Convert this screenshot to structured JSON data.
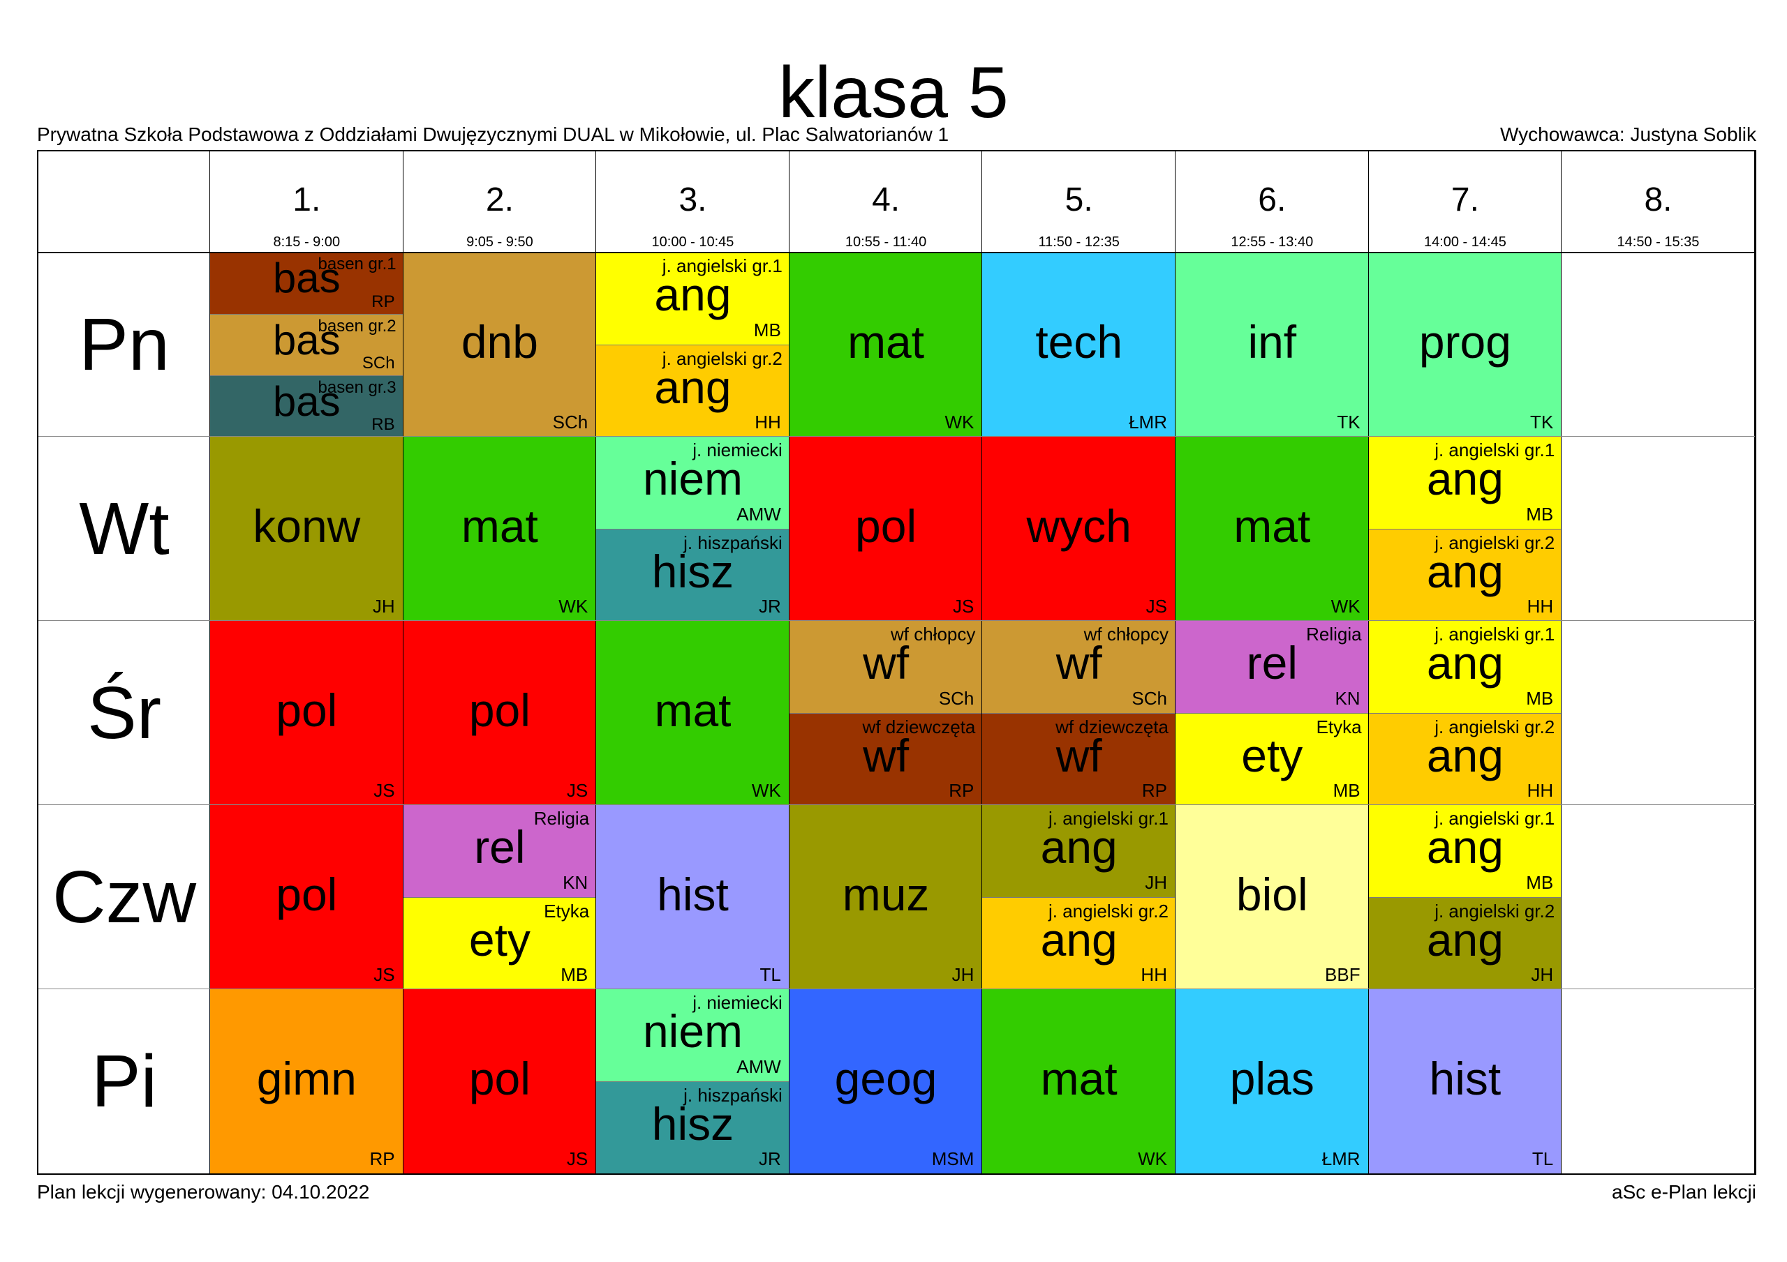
{
  "title": "klasa 5",
  "school": "Prywatna Szkoła Podstawowa z Oddziałami Dwujęzycznymi DUAL w Mikołowie, ul. Plac Salwatorianów 1",
  "teacher": "Wychowawca: Justyna Soblik",
  "footer_left": "Plan lekcji wygenerowany: 04.10.2022",
  "footer_right": "aSc e-Plan lekcji",
  "periods": [
    {
      "num": "1.",
      "time": "8:15 - 9:00"
    },
    {
      "num": "2.",
      "time": "9:05 - 9:50"
    },
    {
      "num": "3.",
      "time": "10:00 - 10:45"
    },
    {
      "num": "4.",
      "time": "10:55 - 11:40"
    },
    {
      "num": "5.",
      "time": "11:50 - 12:35"
    },
    {
      "num": "6.",
      "time": "12:55 - 13:40"
    },
    {
      "num": "7.",
      "time": "14:00 - 14:45"
    },
    {
      "num": "8.",
      "time": "14:50 - 15:35"
    }
  ],
  "days": [
    {
      "label": "Pn",
      "slots": [
        [
          {
            "s": "bas",
            "f": "basen gr.1",
            "t": "RP",
            "c": "#993300"
          },
          {
            "s": "bas",
            "f": "basen gr.2",
            "t": "SCh",
            "c": "#CC9933"
          },
          {
            "s": "bas",
            "f": "basen gr.3",
            "t": "RB",
            "c": "#336666"
          }
        ],
        [
          {
            "s": "dnb",
            "f": "",
            "t": "SCh",
            "c": "#CC9933"
          }
        ],
        [
          {
            "s": "ang",
            "f": "j. angielski gr.1",
            "t": "MB",
            "c": "#FFFF00"
          },
          {
            "s": "ang",
            "f": "j. angielski gr.2",
            "t": "HH",
            "c": "#FFCC00"
          }
        ],
        [
          {
            "s": "mat",
            "f": "",
            "t": "WK",
            "c": "#33CC00"
          }
        ],
        [
          {
            "s": "tech",
            "f": "",
            "t": "ŁMR",
            "c": "#33CCFF"
          }
        ],
        [
          {
            "s": "inf",
            "f": "",
            "t": "TK",
            "c": "#66FF99"
          }
        ],
        [
          {
            "s": "prog",
            "f": "",
            "t": "TK",
            "c": "#66FF99"
          }
        ],
        []
      ]
    },
    {
      "label": "Wt",
      "slots": [
        [
          {
            "s": "konw",
            "f": "",
            "t": "JH",
            "c": "#999900"
          }
        ],
        [
          {
            "s": "mat",
            "f": "",
            "t": "WK",
            "c": "#33CC00"
          }
        ],
        [
          {
            "s": "niem",
            "f": "j. niemiecki",
            "t": "AMW",
            "c": "#66FF99"
          },
          {
            "s": "hisz",
            "f": "j. hiszpański",
            "t": "JR",
            "c": "#339999"
          }
        ],
        [
          {
            "s": "pol",
            "f": "",
            "t": "JS",
            "c": "#FF0000"
          }
        ],
        [
          {
            "s": "wych",
            "f": "",
            "t": "JS",
            "c": "#FF0000"
          }
        ],
        [
          {
            "s": "mat",
            "f": "",
            "t": "WK",
            "c": "#33CC00"
          }
        ],
        [
          {
            "s": "ang",
            "f": "j. angielski gr.1",
            "t": "MB",
            "c": "#FFFF00"
          },
          {
            "s": "ang",
            "f": "j. angielski gr.2",
            "t": "HH",
            "c": "#FFCC00"
          }
        ],
        []
      ]
    },
    {
      "label": "Śr",
      "slots": [
        [
          {
            "s": "pol",
            "f": "",
            "t": "JS",
            "c": "#FF0000"
          }
        ],
        [
          {
            "s": "pol",
            "f": "",
            "t": "JS",
            "c": "#FF0000"
          }
        ],
        [
          {
            "s": "mat",
            "f": "",
            "t": "WK",
            "c": "#33CC00"
          }
        ],
        [
          {
            "s": "wf",
            "f": "wf chłopcy",
            "t": "SCh",
            "c": "#CC9933"
          },
          {
            "s": "wf",
            "f": "wf dziewczęta",
            "t": "RP",
            "c": "#993300"
          }
        ],
        [
          {
            "s": "wf",
            "f": "wf chłopcy",
            "t": "SCh",
            "c": "#CC9933"
          },
          {
            "s": "wf",
            "f": "wf dziewczęta",
            "t": "RP",
            "c": "#993300"
          }
        ],
        [
          {
            "s": "rel",
            "f": "Religia",
            "t": "KN",
            "c": "#CC66CC"
          },
          {
            "s": "ety",
            "f": "Etyka",
            "t": "MB",
            "c": "#FFFF00"
          }
        ],
        [
          {
            "s": "ang",
            "f": "j. angielski gr.1",
            "t": "MB",
            "c": "#FFFF00"
          },
          {
            "s": "ang",
            "f": "j. angielski gr.2",
            "t": "HH",
            "c": "#FFCC00"
          }
        ],
        []
      ]
    },
    {
      "label": "Czw",
      "slots": [
        [
          {
            "s": "pol",
            "f": "",
            "t": "JS",
            "c": "#FF0000"
          }
        ],
        [
          {
            "s": "rel",
            "f": "Religia",
            "t": "KN",
            "c": "#CC66CC"
          },
          {
            "s": "ety",
            "f": "Etyka",
            "t": "MB",
            "c": "#FFFF00"
          }
        ],
        [
          {
            "s": "hist",
            "f": "",
            "t": "TL",
            "c": "#9999FF"
          }
        ],
        [
          {
            "s": "muz",
            "f": "",
            "t": "JH",
            "c": "#999900"
          }
        ],
        [
          {
            "s": "ang",
            "f": "j. angielski gr.1",
            "t": "JH",
            "c": "#999900"
          },
          {
            "s": "ang",
            "f": "j. angielski gr.2",
            "t": "HH",
            "c": "#FFCC00"
          }
        ],
        [
          {
            "s": "biol",
            "f": "",
            "t": "BBF",
            "c": "#FFFF99"
          }
        ],
        [
          {
            "s": "ang",
            "f": "j. angielski gr.1",
            "t": "MB",
            "c": "#FFFF00"
          },
          {
            "s": "ang",
            "f": "j. angielski gr.2",
            "t": "JH",
            "c": "#999900"
          }
        ],
        []
      ]
    },
    {
      "label": "Pi",
      "slots": [
        [
          {
            "s": "gimn",
            "f": "",
            "t": "RP",
            "c": "#FF9900"
          }
        ],
        [
          {
            "s": "pol",
            "f": "",
            "t": "JS",
            "c": "#FF0000"
          }
        ],
        [
          {
            "s": "niem",
            "f": "j. niemiecki",
            "t": "AMW",
            "c": "#66FF99"
          },
          {
            "s": "hisz",
            "f": "j. hiszpański",
            "t": "JR",
            "c": "#339999"
          }
        ],
        [
          {
            "s": "geog",
            "f": "",
            "t": "MSM",
            "c": "#3366FF"
          }
        ],
        [
          {
            "s": "mat",
            "f": "",
            "t": "WK",
            "c": "#33CC00"
          }
        ],
        [
          {
            "s": "plas",
            "f": "",
            "t": "ŁMR",
            "c": "#33CCFF"
          }
        ],
        [
          {
            "s": "hist",
            "f": "",
            "t": "TL",
            "c": "#9999FF"
          }
        ],
        []
      ]
    }
  ]
}
